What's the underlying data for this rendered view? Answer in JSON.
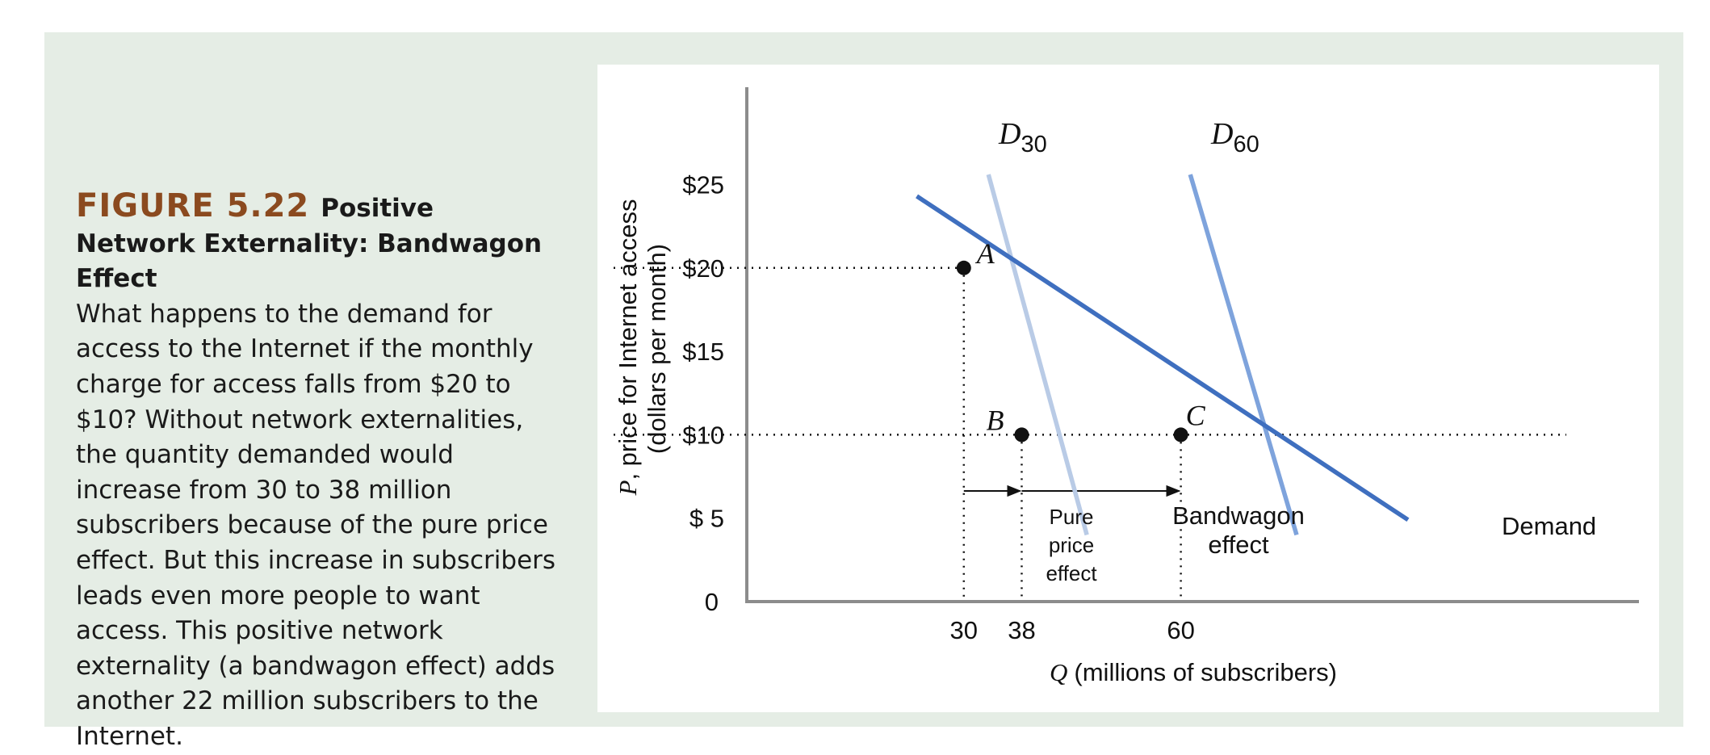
{
  "caption": {
    "figure_number": "FIGURE 5.22",
    "title": "Positive Network Externality: Bandwagon Effect",
    "body": "What happens to the demand for access to the Internet if the monthly charge for access falls from $20 to $10? Without network externalities, the quantity demanded would increase from 30 to 38 million subscribers because of the pure price effect. But this increase in subscribers leads even more people to want access. This positive network externality (a bandwagon effect) adds another 22 million subscribers to the Internet."
  },
  "chart_data": {
    "type": "line",
    "xlabel_symbol": "Q",
    "xlabel": "(millions of subscribers)",
    "ylabel_symbol": "P",
    "ylabel_line1": ", price for Internet access",
    "ylabel_line2": "(dollars per month)",
    "y_ticks": [
      {
        "value": 25,
        "label": "$25"
      },
      {
        "value": 20,
        "label": "$20"
      },
      {
        "value": 15,
        "label": "$15"
      },
      {
        "value": 10,
        "label": "$10"
      },
      {
        "value": 5,
        "label": "$ 5"
      },
      {
        "value": 0,
        "label": "0"
      }
    ],
    "x_ticks": [
      {
        "value": 30,
        "label": "30"
      },
      {
        "value": 38,
        "label": "38"
      },
      {
        "value": 60,
        "label": "60"
      }
    ],
    "xlim": [
      0,
      108
    ],
    "ylim": [
      0,
      30
    ],
    "series": [
      {
        "name": "Demand",
        "color": "#3f6fbf",
        "points": [
          [
            23.5,
            24.3
          ],
          [
            91.4,
            4.9
          ]
        ]
      },
      {
        "name": "D",
        "subscript": "30",
        "color": "#b9cbe6",
        "points": [
          [
            33.4,
            25.6
          ],
          [
            47,
            4
          ]
        ]
      },
      {
        "name": "D",
        "subscript": "60",
        "color": "#7ea3dc",
        "points": [
          [
            61.3,
            25.6
          ],
          [
            76,
            4
          ]
        ]
      }
    ],
    "points": [
      {
        "label": "A",
        "x": 30,
        "y": 20
      },
      {
        "label": "B",
        "x": 38,
        "y": 10
      },
      {
        "label": "C",
        "x": 60,
        "y": 10
      }
    ],
    "annotations": {
      "pure_price_effect": [
        "Pure",
        "price",
        "effect"
      ],
      "bandwagon_effect": [
        "Bandwagon",
        "effect"
      ]
    }
  }
}
